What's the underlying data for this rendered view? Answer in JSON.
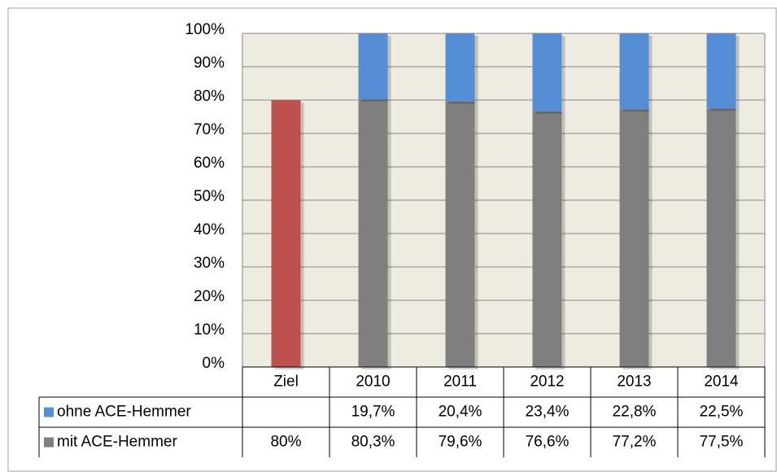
{
  "chart_data": {
    "type": "stacked-bar",
    "categories": [
      "Ziel",
      "2010",
      "2011",
      "2012",
      "2013",
      "2014"
    ],
    "series": [
      {
        "name": "ohne ACE-Hemmer",
        "color": "#558ed5",
        "values": [
          null,
          19.7,
          20.4,
          23.4,
          22.8,
          22.5
        ],
        "value_labels": [
          null,
          "19,7%",
          "20,4%",
          "23,4%",
          "22,8%",
          "22,5%"
        ]
      },
      {
        "name": "mit ACE-Hemmer",
        "color": "#7f7f7f",
        "colors": [
          "#c0504d",
          "#7f7f7f",
          "#7f7f7f",
          "#7f7f7f",
          "#7f7f7f",
          "#7f7f7f"
        ],
        "values": [
          80,
          80.3,
          79.6,
          76.6,
          77.2,
          77.5
        ],
        "value_labels": [
          "80%",
          "80,3%",
          "79,6%",
          "76,6%",
          "77,2%",
          "77,5%"
        ]
      }
    ],
    "ylim": [
      0,
      100
    ],
    "yticks": [
      {
        "value": 0,
        "label": "0%"
      },
      {
        "value": 10,
        "label": "10%"
      },
      {
        "value": 20,
        "label": "20%"
      },
      {
        "value": 30,
        "label": "30%"
      },
      {
        "value": 40,
        "label": "40%"
      },
      {
        "value": 50,
        "label": "50%"
      },
      {
        "value": 60,
        "label": "60%"
      },
      {
        "value": 70,
        "label": "70%"
      },
      {
        "value": 80,
        "label": "80%"
      },
      {
        "value": 90,
        "label": "90%"
      },
      {
        "value": 100,
        "label": "100%"
      }
    ],
    "grid": true,
    "plot_background": "#eeece1",
    "data_table": true
  }
}
